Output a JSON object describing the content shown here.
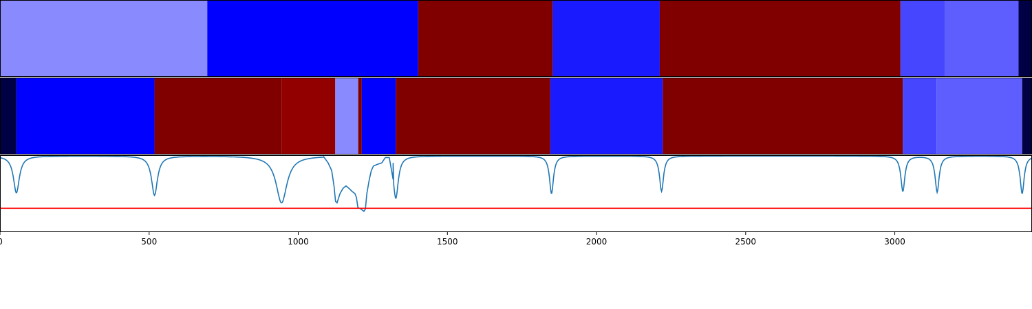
{
  "chart_data": [
    {
      "type": "heatmap",
      "x_range": [
        0,
        3460
      ],
      "segments": [
        {
          "start": 0,
          "end": 695,
          "color": "#8a8aff"
        },
        {
          "start": 695,
          "end": 1402,
          "color": "#0000ff"
        },
        {
          "start": 1402,
          "end": 1853,
          "color": "#800000"
        },
        {
          "start": 1853,
          "end": 2212,
          "color": "#1a1aff"
        },
        {
          "start": 2212,
          "end": 3019,
          "color": "#800000"
        },
        {
          "start": 3019,
          "end": 3167,
          "color": "#4646ff"
        },
        {
          "start": 3167,
          "end": 3415,
          "color": "#5e5eff"
        },
        {
          "start": 3415,
          "end": 3460,
          "color": "#000044"
        }
      ]
    },
    {
      "type": "heatmap",
      "x_range": [
        0,
        3460
      ],
      "segments": [
        {
          "start": 0,
          "end": 55,
          "color": "#000044"
        },
        {
          "start": 55,
          "end": 518,
          "color": "#0000ff"
        },
        {
          "start": 518,
          "end": 944,
          "color": "#800000"
        },
        {
          "start": 944,
          "end": 1124,
          "color": "#920000"
        },
        {
          "start": 1124,
          "end": 1201,
          "color": "#8a8aff"
        },
        {
          "start": 1201,
          "end": 1213,
          "color": "#800000"
        },
        {
          "start": 1213,
          "end": 1327,
          "color": "#0000ff"
        },
        {
          "start": 1327,
          "end": 1845,
          "color": "#800000"
        },
        {
          "start": 1845,
          "end": 2222,
          "color": "#1a1aff"
        },
        {
          "start": 2222,
          "end": 3027,
          "color": "#800000"
        },
        {
          "start": 3027,
          "end": 3140,
          "color": "#4646ff"
        },
        {
          "start": 3140,
          "end": 3427,
          "color": "#5e5eff"
        },
        {
          "start": 3427,
          "end": 3460,
          "color": "#000044"
        }
      ]
    },
    {
      "type": "line",
      "x_range": [
        0,
        3460
      ],
      "y_range": [
        0,
        1
      ],
      "grid": false,
      "x_ticks": [
        0,
        500,
        1000,
        1500,
        2000,
        2500,
        3000
      ],
      "x_tick_labels": [
        "0",
        "500",
        "1000",
        "1500",
        "2000",
        "2500",
        "3000"
      ],
      "series": [
        {
          "color": "#1f77b4",
          "baseline": 0.99,
          "dips": [
            {
              "x": 55,
              "depth": 0.48,
              "width": 12
            },
            {
              "x": 518,
              "depth": 0.51,
              "width": 12
            },
            {
              "x": 944,
              "depth": 0.61,
              "width": 22
            },
            {
              "x": 1327,
              "depth": 0.55,
              "width": 10
            },
            {
              "x": 1849,
              "depth": 0.49,
              "width": 8
            },
            {
              "x": 2218,
              "depth": 0.46,
              "width": 8
            },
            {
              "x": 3027,
              "depth": 0.46,
              "width": 8
            },
            {
              "x": 3142,
              "depth": 0.47,
              "width": 8
            },
            {
              "x": 3427,
              "depth": 0.49,
              "width": 8
            }
          ],
          "points": [
            [
              1085,
              0.98
            ],
            [
              1100,
              0.9
            ],
            [
              1112,
              0.8
            ],
            [
              1120,
              0.6
            ],
            [
              1125,
              0.4
            ],
            [
              1130,
              0.38
            ],
            [
              1140,
              0.5
            ],
            [
              1150,
              0.57
            ],
            [
              1160,
              0.6
            ],
            [
              1170,
              0.57
            ],
            [
              1180,
              0.53
            ],
            [
              1190,
              0.5
            ],
            [
              1195,
              0.45
            ],
            [
              1200,
              0.32
            ],
            [
              1210,
              0.3
            ],
            [
              1220,
              0.27
            ],
            [
              1225,
              0.3
            ],
            [
              1230,
              0.5
            ],
            [
              1238,
              0.68
            ],
            [
              1245,
              0.8
            ],
            [
              1252,
              0.86
            ],
            [
              1265,
              0.88
            ],
            [
              1280,
              0.9
            ],
            [
              1292,
              0.97
            ],
            [
              1305,
              0.97
            ],
            [
              1318,
              0.9
            ]
          ]
        }
      ],
      "threshold": {
        "y": 0.31,
        "color": "#ff0000"
      }
    }
  ]
}
